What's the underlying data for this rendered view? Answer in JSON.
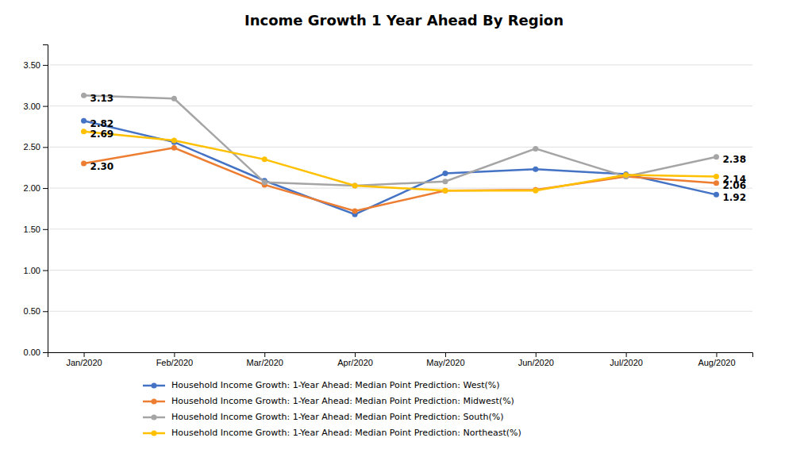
{
  "chart_data": {
    "type": "line",
    "title": "Income Growth 1 Year Ahead By Region",
    "categories": [
      "Jan/2020",
      "Feb/2020",
      "Mar/2020",
      "Apr/2020",
      "May/2020",
      "Jun/2020",
      "Jul/2020",
      "Aug/2020"
    ],
    "series": [
      {
        "name": "Household Income Growth: 1-Year Ahead: Median Point Prediction: West(%)",
        "color": "#4472C4",
        "values": [
          2.82,
          2.56,
          2.09,
          1.68,
          2.18,
          2.23,
          2.17,
          1.92
        ],
        "value_labels": [
          "2.82",
          null,
          null,
          null,
          null,
          null,
          null,
          "1.92"
        ]
      },
      {
        "name": "Household Income Growth: 1-Year Ahead: Median Point Prediction: Midwest(%)",
        "color": "#ED7D31",
        "values": [
          2.3,
          2.49,
          2.04,
          1.72,
          1.97,
          1.98,
          2.14,
          2.06
        ],
        "value_labels": [
          "2.30",
          null,
          null,
          null,
          null,
          null,
          null,
          "2.06"
        ]
      },
      {
        "name": "Household Income Growth: 1-Year Ahead: Median Point Prediction: South(%)",
        "color": "#A5A5A5",
        "values": [
          3.13,
          3.09,
          2.07,
          2.03,
          2.08,
          2.48,
          2.14,
          2.38
        ],
        "value_labels": [
          "3.13",
          null,
          null,
          null,
          null,
          null,
          null,
          "2.38"
        ]
      },
      {
        "name": "Household Income Growth: 1-Year Ahead: Median Point Prediction: Northeast(%)",
        "color": "#FFC000",
        "values": [
          2.69,
          2.58,
          2.35,
          2.03,
          1.97,
          1.97,
          2.16,
          2.14
        ],
        "value_labels": [
          "2.69",
          null,
          null,
          null,
          null,
          null,
          null,
          "2.14"
        ]
      }
    ],
    "ylim": [
      0.0,
      3.75
    ],
    "yticks": [
      {
        "value": 0.0,
        "label": "0.00"
      },
      {
        "value": 0.5,
        "label": "0.50"
      },
      {
        "value": 1.0,
        "label": "1.00"
      },
      {
        "value": 1.5,
        "label": "1.50"
      },
      {
        "value": 2.0,
        "label": "2.00"
      },
      {
        "value": 2.5,
        "label": "2.50"
      },
      {
        "value": 3.0,
        "label": "3.00"
      },
      {
        "value": 3.5,
        "label": "3.50"
      }
    ],
    "grid": true,
    "marker": "circle"
  }
}
